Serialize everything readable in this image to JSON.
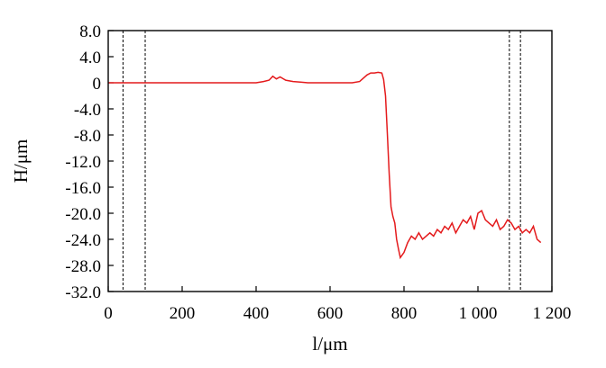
{
  "chart_data": {
    "type": "line",
    "title": "",
    "xlabel": "l/μm",
    "ylabel": "H/μm",
    "xlim": [
      0,
      1200
    ],
    "ylim": [
      -32,
      8
    ],
    "x_ticks": [
      0,
      200,
      400,
      600,
      800,
      1000,
      1200
    ],
    "x_tick_labels": [
      "0",
      "200",
      "400",
      "600",
      "800",
      "1 000",
      "1 200"
    ],
    "y_ticks": [
      8,
      4,
      0,
      -4,
      -8,
      -12,
      -16,
      -20,
      -24,
      -28,
      -32
    ],
    "y_tick_labels": [
      "8.0",
      "4.0",
      "0",
      "-4.0",
      "-8.0",
      "-12.0",
      "-16.0",
      "-20.0",
      "-24.0",
      "-28.0",
      "-32.0"
    ],
    "grid": false,
    "series_color": "#e41a1c",
    "reference_lines_x": [
      40,
      100,
      1085,
      1115
    ],
    "series": [
      {
        "x": [
          0,
          50,
          100,
          150,
          200,
          250,
          300,
          350,
          400,
          420,
          435,
          445,
          455,
          465,
          480,
          500,
          520,
          540,
          560,
          580,
          600,
          620,
          640,
          660,
          680,
          700,
          710,
          720,
          730,
          740,
          745,
          750,
          755,
          760,
          765,
          770,
          775,
          780,
          785,
          790,
          800,
          810,
          820,
          830,
          840,
          850,
          860,
          870,
          880,
          890,
          900,
          910,
          920,
          930,
          940,
          950,
          960,
          970,
          980,
          990,
          1000,
          1010,
          1020,
          1030,
          1040,
          1050,
          1060,
          1070,
          1080,
          1090,
          1100,
          1110,
          1120,
          1130,
          1140,
          1150,
          1160,
          1170
        ],
        "y": [
          0,
          0,
          0,
          0,
          0,
          0,
          0,
          0,
          0,
          0.2,
          0.4,
          1.0,
          0.6,
          0.9,
          0.4,
          0.2,
          0.1,
          0,
          0,
          0,
          0,
          0,
          0,
          0,
          0.2,
          1.2,
          1.5,
          1.5,
          1.6,
          1.5,
          0.5,
          -2.0,
          -8.0,
          -14.0,
          -19.0,
          -20.5,
          -21.5,
          -24.0,
          -25.5,
          -26.8,
          -26.0,
          -24.5,
          -23.5,
          -24.0,
          -23.0,
          -24.0,
          -23.5,
          -23.0,
          -23.5,
          -22.5,
          -23.0,
          -22.0,
          -22.5,
          -21.5,
          -23.0,
          -22.0,
          -21.0,
          -21.5,
          -20.5,
          -22.5,
          -20.0,
          -19.6,
          -21.0,
          -21.5,
          -22.0,
          -21.0,
          -22.5,
          -22.0,
          -21.0,
          -21.5,
          -22.5,
          -22.0,
          -23.0,
          -22.5,
          -23.0,
          -22.0,
          -24.0,
          -24.5
        ]
      }
    ]
  }
}
